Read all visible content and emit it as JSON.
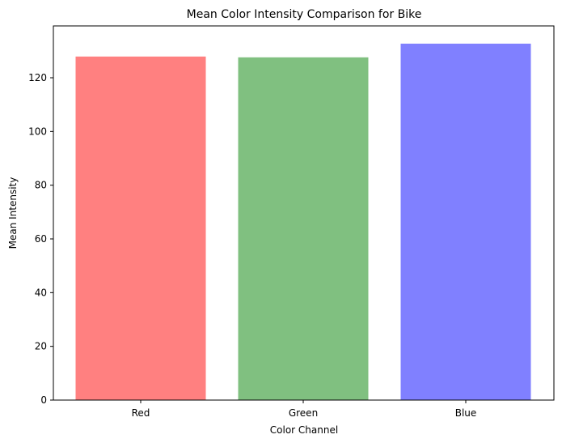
{
  "chart_data": {
    "type": "bar",
    "title": "Mean Color Intensity Comparison for Bike",
    "xlabel": "Color Channel",
    "ylabel": "Mean Intensity",
    "categories": [
      "Red",
      "Green",
      "Blue"
    ],
    "values": [
      127.9,
      127.6,
      132.7
    ],
    "colors": [
      "#ff8080",
      "#80c080",
      "#8080ff"
    ],
    "ylim": [
      0,
      139.3
    ],
    "yticks": [
      0,
      20,
      40,
      60,
      80,
      100,
      120
    ],
    "grid": false,
    "legend": "none"
  }
}
